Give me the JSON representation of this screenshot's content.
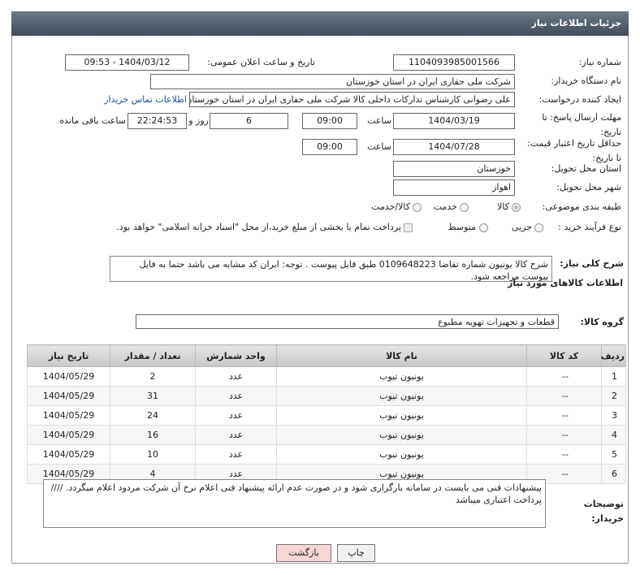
{
  "header": {
    "title": "جزئیات اطلاعات نیاز"
  },
  "need_number": {
    "label": "شماره نیاز:",
    "value": "1104093985001566"
  },
  "announce": {
    "label": "تاریخ و ساعت اعلان عمومی:",
    "value": "1404/03/12 - 09:53"
  },
  "buyer": {
    "label": "نام دستگاه خریدار:",
    "value": "شرکت ملی حفاری ایران در استان خوزستان"
  },
  "creator": {
    "label": "ایجاد کننده درخواست:",
    "value": "علی رضوانی کارشناس تدارکات داخلی  کالا شرکت ملی حفاری ایران در استان خوزستان",
    "contact_link": "اطلاعات تماس خریدار"
  },
  "deadline": {
    "label": "مهلت ارسال پاسخ: تا تاریخ:",
    "date": "1404/03/19",
    "time_label": "ساعت",
    "time": "09:00",
    "days": "6",
    "days_label": "روز و",
    "remaining": "22:24:53",
    "remaining_label": "ساعت باقی مانده"
  },
  "validity": {
    "label": "حداقل تاریخ اعتبار قیمت: تا تاریخ:",
    "date": "1404/07/28",
    "time_label": "ساعت",
    "time": "09:00"
  },
  "province": {
    "label": "استان محل تحویل:",
    "value": "خوزستان"
  },
  "city": {
    "label": "شهر محل تحویل:",
    "value": "اهواز"
  },
  "category": {
    "label": "طبقه بندی موضوعی:",
    "options": [
      "کالا",
      "خدمت",
      "کالا/خدمت"
    ]
  },
  "process": {
    "label": "نوع فرآیند خرید :",
    "options": [
      "جزیی",
      "متوسط"
    ],
    "checkbox": "پرداخت تمام یا بخشی از مبلغ خرید،از محل \"اسناد خزانه اسلامی\" خواهد بود."
  },
  "description": {
    "label": "شرح کلی نیاز:",
    "value": "شرح کالا یونیون شماره تقاضا 0109648223 طبق فایل پیوست . توجه: ایران کد مشابه می باشد حتما به فایل پیوست مراجعه شود."
  },
  "items_title": "اطلاعات کالاهای مورد نیاز",
  "group": {
    "label": "گروه کالا:",
    "value": "قطعات و تجهیزات تهویه مطبوع"
  },
  "table": {
    "headers": [
      "ردیف",
      "کد کالا",
      "نام کالا",
      "واحد شمارش",
      "تعداد / مقدار",
      "تاریخ نیاز"
    ],
    "rows": [
      [
        1,
        "--",
        "یونیون تیوب",
        "عدد",
        2,
        "1404/05/29"
      ],
      [
        2,
        "--",
        "یونیون تیوب",
        "عدد",
        31,
        "1404/05/29"
      ],
      [
        3,
        "--",
        "یونیون تیوب",
        "عدد",
        24,
        "1404/05/29"
      ],
      [
        4,
        "--",
        "یونیون تیوب",
        "عدد",
        16,
        "1404/05/29"
      ],
      [
        5,
        "--",
        "یونیون تیوب",
        "عدد",
        10,
        "1404/05/29"
      ],
      [
        6,
        "--",
        "یونیون تیوب",
        "عدد",
        4,
        "1404/05/29"
      ]
    ]
  },
  "notes": {
    "label": "توضیحات خریدار:",
    "value": "پیشنهادات فنی می بایست در سامانه بارگزاری شود و در صورت عدم ارائه پیشنهاد فنی اعلام نرخ آن شرکت مردود اعلام میگردد.  //// پرداخت اعتباری میباشد"
  },
  "buttons": {
    "print": "چاپ",
    "back": "بازگشت"
  }
}
